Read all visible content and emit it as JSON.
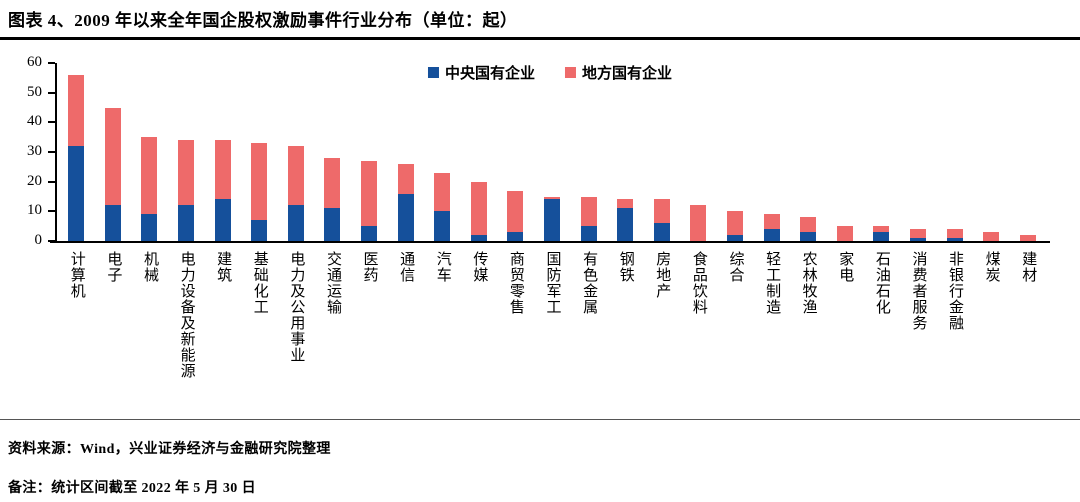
{
  "title": "图表 4、2009 年以来全年国企股权激励事件行业分布（单位：起）",
  "source": "资料来源：Wind，兴业证券经济与金融研究院整理",
  "note": "备注：统计区间截至 2022 年 5 月 30 日",
  "colors": {
    "central": "#15509B",
    "local": "#EE6A6A",
    "axis": "#000000"
  },
  "chart_data": {
    "type": "bar",
    "stacked": true,
    "title": "2009 年以来全年国企股权激励事件行业分布（单位：起）",
    "xlabel": "",
    "ylabel": "",
    "ylim": [
      0,
      60
    ],
    "yticks": [
      0,
      10,
      20,
      30,
      40,
      50,
      60
    ],
    "grid": false,
    "legend_position": "top-center",
    "categories": [
      "计算机",
      "电子",
      "机械",
      "电力设备及新能源",
      "建筑",
      "基础化工",
      "电力及公用事业",
      "交通运输",
      "医药",
      "通信",
      "汽车",
      "传媒",
      "商贸零售",
      "国防军工",
      "有色金属",
      "钢铁",
      "房地产",
      "食品饮料",
      "综合",
      "轻工制造",
      "农林牧渔",
      "家电",
      "石油石化",
      "消费者服务",
      "非银行金融",
      "煤炭",
      "建材"
    ],
    "series": [
      {
        "name": "中央国有企业",
        "color": "#15509B",
        "values": [
          32,
          12,
          9,
          12,
          14,
          7,
          12,
          11,
          5,
          16,
          10,
          2,
          3,
          14,
          5,
          11,
          6,
          0,
          2,
          4,
          3,
          0,
          3,
          1,
          1,
          0,
          0
        ]
      },
      {
        "name": "地方国有企业",
        "color": "#EE6A6A",
        "values": [
          24,
          33,
          26,
          22,
          20,
          26,
          20,
          17,
          22,
          10,
          13,
          18,
          14,
          1,
          10,
          3,
          8,
          12,
          8,
          5,
          5,
          5,
          2,
          3,
          3,
          3,
          2
        ]
      }
    ],
    "totals": [
      56,
      45,
      35,
      34,
      34,
      33,
      32,
      28,
      27,
      26,
      23,
      20,
      17,
      15,
      15,
      14,
      14,
      12,
      10,
      9,
      8,
      5,
      5,
      4,
      4,
      3,
      2
    ]
  }
}
